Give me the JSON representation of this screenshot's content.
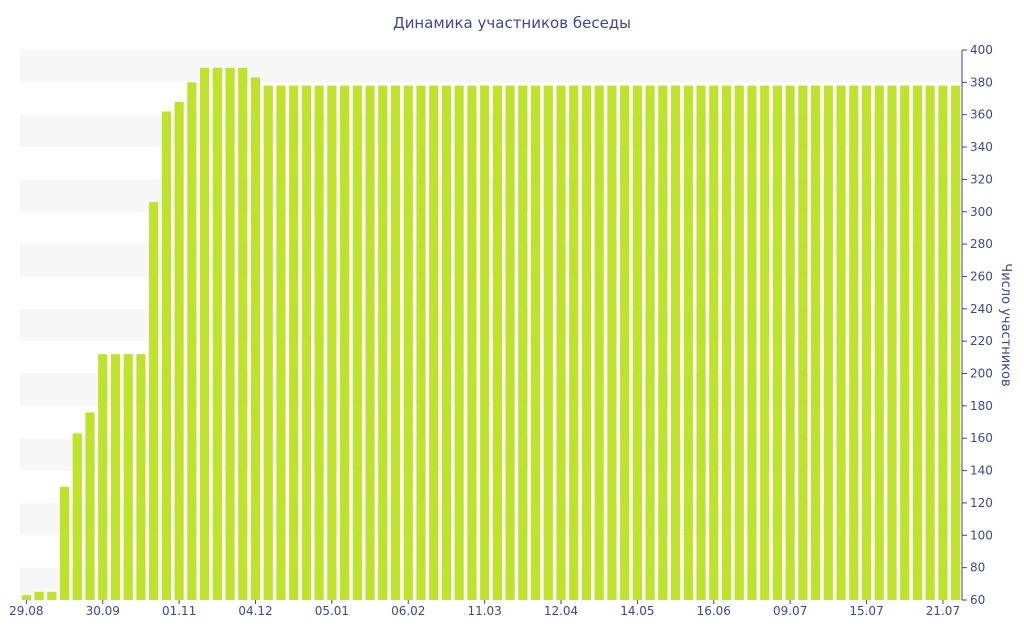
{
  "chart_data": {
    "type": "bar",
    "title": "Динамика участников беседы",
    "ylabel": "Число участников",
    "xlabel": "",
    "ylim": [
      60,
      400
    ],
    "yticks": [
      60,
      80,
      100,
      120,
      140,
      160,
      180,
      200,
      220,
      240,
      260,
      280,
      300,
      320,
      340,
      360,
      380,
      400
    ],
    "xtick_labels": [
      {
        "index": 0,
        "label": "29.08"
      },
      {
        "index": 6,
        "label": "30.09"
      },
      {
        "index": 12,
        "label": "01.11"
      },
      {
        "index": 18,
        "label": "04.12"
      },
      {
        "index": 24,
        "label": "05.01"
      },
      {
        "index": 30,
        "label": "06.02"
      },
      {
        "index": 36,
        "label": "11.03"
      },
      {
        "index": 42,
        "label": "12.04"
      },
      {
        "index": 48,
        "label": "14.05"
      },
      {
        "index": 54,
        "label": "16.06"
      },
      {
        "index": 60,
        "label": "09.07"
      },
      {
        "index": 66,
        "label": "15.07"
      },
      {
        "index": 72,
        "label": "21.07"
      }
    ],
    "values": [
      63,
      65,
      65,
      130,
      163,
      176,
      212,
      212,
      212,
      212,
      306,
      362,
      368,
      380,
      389,
      389,
      389,
      389,
      383,
      378,
      378,
      378,
      378,
      378,
      378,
      378,
      378,
      378,
      378,
      378,
      378,
      378,
      378,
      378,
      378,
      378,
      378,
      378,
      378,
      378,
      378,
      378,
      378,
      378,
      378,
      378,
      378,
      378,
      378,
      378,
      378,
      378,
      378,
      378,
      378,
      378,
      378,
      378,
      378,
      378,
      378,
      378,
      378,
      378,
      378,
      378,
      378,
      378,
      378,
      378,
      378,
      378,
      378,
      378
    ],
    "bar_color": "#bfe22d",
    "band_color": "#f7f7f7",
    "text_color": "#3b4a8a",
    "grid": "alternating bands",
    "legend": "none"
  }
}
